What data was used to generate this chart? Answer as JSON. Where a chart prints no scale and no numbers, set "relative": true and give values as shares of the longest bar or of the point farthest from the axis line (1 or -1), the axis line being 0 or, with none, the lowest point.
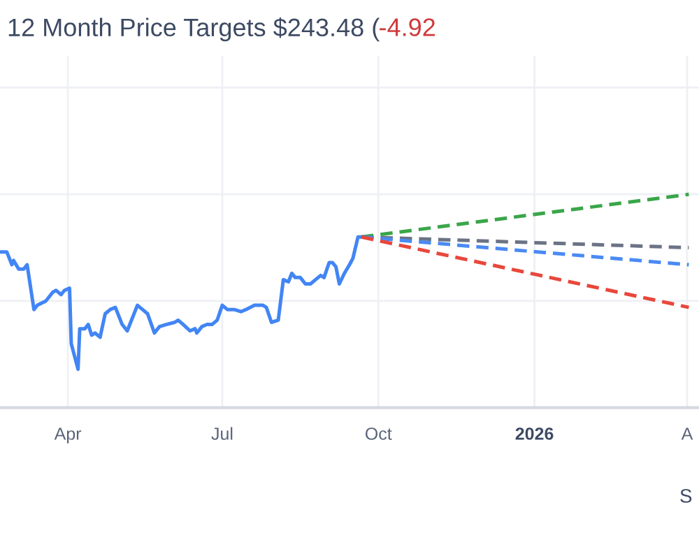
{
  "chart_data": {
    "type": "line",
    "title": "12 Month Price Targets $243.48 (",
    "annotations": [
      "-4.92",
      "S"
    ],
    "relative": true,
    "grid": true,
    "tick_labels": "x",
    "legend": false,
    "xlim": [
      "2025-02-20",
      "2026-04-08"
    ],
    "xticks": [
      {
        "value": "2025-04-01",
        "label": "Apr"
      },
      {
        "value": "2025-07-01",
        "label": "Jul"
      },
      {
        "value": "2025-10-01",
        "label": "Oct"
      },
      {
        "value": "2026-01-01",
        "label": "2026"
      },
      {
        "value": "2026-04-01",
        "label": "A"
      }
    ],
    "series": [
      {
        "color": "#4285f4",
        "line_style": "solid",
        "x": [
          "2025-02-20",
          "2025-02-24",
          "2025-02-27",
          "2025-02-28",
          "2025-03-03",
          "2025-03-06",
          "2025-03-08",
          "2025-03-12",
          "2025-03-14",
          "2025-03-19",
          "2025-03-23",
          "2025-03-25",
          "2025-03-28",
          "2025-03-30",
          "2025-04-02",
          "2025-04-03",
          "2025-04-07",
          "2025-04-08",
          "2025-04-11",
          "2025-04-13",
          "2025-04-15",
          "2025-04-17",
          "2025-04-20",
          "2025-04-23",
          "2025-04-26",
          "2025-04-29",
          "2025-05-03",
          "2025-05-06",
          "2025-05-08",
          "2025-05-12",
          "2025-05-15",
          "2025-05-18",
          "2025-05-22",
          "2025-05-25",
          "2025-05-29",
          "2025-06-03",
          "2025-06-05",
          "2025-06-08",
          "2025-06-12",
          "2025-06-15",
          "2025-06-16",
          "2025-06-19",
          "2025-06-22",
          "2025-06-25",
          "2025-06-28",
          "2025-07-01",
          "2025-07-04",
          "2025-07-08",
          "2025-07-12",
          "2025-07-15",
          "2025-07-20",
          "2025-07-25",
          "2025-07-27",
          "2025-07-30",
          "2025-08-03",
          "2025-08-06",
          "2025-08-09",
          "2025-08-11",
          "2025-08-13",
          "2025-08-16",
          "2025-08-19",
          "2025-08-22",
          "2025-08-25",
          "2025-08-28",
          "2025-08-30",
          "2025-09-02",
          "2025-09-04",
          "2025-09-06",
          "2025-09-08",
          "2025-09-11",
          "2025-09-14",
          "2025-09-16",
          "2025-09-19",
          "2025-09-21"
        ],
        "values": [
          0.73,
          0.73,
          0.67,
          0.69,
          0.65,
          0.65,
          0.67,
          0.46,
          0.48,
          0.5,
          0.54,
          0.55,
          0.53,
          0.55,
          0.56,
          0.3,
          0.18,
          0.37,
          0.37,
          0.39,
          0.34,
          0.35,
          0.33,
          0.44,
          0.46,
          0.47,
          0.39,
          0.36,
          0.4,
          0.48,
          0.46,
          0.44,
          0.35,
          0.38,
          0.39,
          0.4,
          0.41,
          0.39,
          0.36,
          0.37,
          0.35,
          0.38,
          0.39,
          0.39,
          0.41,
          0.48,
          0.46,
          0.46,
          0.45,
          0.46,
          0.48,
          0.48,
          0.47,
          0.4,
          0.41,
          0.6,
          0.59,
          0.63,
          0.61,
          0.61,
          0.58,
          0.58,
          0.6,
          0.62,
          0.61,
          0.68,
          0.68,
          0.66,
          0.58,
          0.63,
          0.67,
          0.7,
          0.8,
          0.8
        ]
      },
      {
        "color": "#3aa64a",
        "line_style": "dashed",
        "x": [
          "2025-09-21",
          "2026-04-02"
        ],
        "values": [
          0.8,
          1.0
        ]
      },
      {
        "color": "#6b7385",
        "line_style": "dashed",
        "x": [
          "2025-09-21",
          "2026-04-02"
        ],
        "values": [
          0.8,
          0.75
        ]
      },
      {
        "color": "#4a8af4",
        "line_style": "dashed",
        "x": [
          "2025-09-21",
          "2026-04-02"
        ],
        "values": [
          0.8,
          0.67
        ]
      },
      {
        "color": "#e8473b",
        "line_style": "dashed",
        "x": [
          "2025-09-21",
          "2026-04-02"
        ],
        "values": [
          0.8,
          0.47
        ]
      }
    ]
  }
}
